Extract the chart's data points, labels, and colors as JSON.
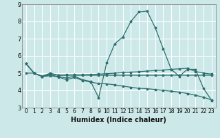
{
  "background_color": "#cce8e8",
  "grid_color": "#ffffff",
  "line_color": "#2d6e6e",
  "xlabel": "Humidex (Indice chaleur)",
  "xlim": [
    -0.5,
    23.5
  ],
  "ylim": [
    3,
    9
  ],
  "yticks": [
    3,
    4,
    5,
    6,
    7,
    8,
    9
  ],
  "xticks": [
    0,
    1,
    2,
    3,
    4,
    5,
    6,
    7,
    8,
    9,
    10,
    11,
    12,
    13,
    14,
    15,
    16,
    17,
    18,
    19,
    20,
    21,
    22,
    23
  ],
  "lines": [
    {
      "x": [
        0,
        1,
        2,
        3,
        4,
        5,
        6,
        7,
        8,
        9,
        10,
        11,
        12,
        13,
        14,
        15,
        16,
        17,
        18,
        19,
        20,
        21,
        22,
        23
      ],
      "y": [
        5.55,
        5.0,
        4.8,
        4.9,
        4.8,
        4.72,
        4.82,
        4.62,
        4.52,
        3.58,
        5.6,
        6.7,
        7.1,
        8.0,
        8.55,
        8.6,
        7.65,
        6.42,
        5.22,
        4.82,
        5.22,
        5.22,
        4.12,
        3.42
      ]
    },
    {
      "x": [
        0,
        1,
        2,
        3,
        4,
        5,
        6,
        7,
        8,
        9,
        10,
        11,
        12,
        13,
        14,
        15,
        16,
        17,
        18,
        19,
        20,
        21,
        22,
        23
      ],
      "y": [
        5.0,
        5.0,
        4.8,
        4.95,
        4.88,
        4.88,
        4.9,
        4.9,
        4.92,
        4.95,
        4.97,
        5.0,
        5.03,
        5.06,
        5.08,
        5.12,
        5.15,
        5.18,
        5.22,
        5.25,
        5.28,
        5.1,
        5.0,
        4.95
      ]
    },
    {
      "x": [
        0,
        1,
        2,
        3,
        4,
        5,
        6,
        7,
        8,
        9,
        10,
        11,
        12,
        13,
        14,
        15,
        16,
        17,
        18,
        19,
        20,
        21,
        22,
        23
      ],
      "y": [
        5.55,
        5.0,
        4.8,
        4.85,
        4.78,
        4.62,
        4.75,
        4.58,
        4.48,
        4.4,
        4.38,
        4.32,
        4.25,
        4.18,
        4.12,
        4.1,
        4.05,
        4.0,
        3.95,
        3.9,
        3.82,
        3.72,
        3.6,
        3.45
      ]
    },
    {
      "x": [
        0,
        1,
        2,
        3,
        4,
        5,
        6,
        7,
        8,
        9,
        10,
        11,
        12,
        13,
        14,
        15,
        16,
        17,
        18,
        19,
        20,
        21,
        22,
        23
      ],
      "y": [
        5.55,
        5.0,
        4.82,
        5.0,
        4.88,
        4.9,
        4.88,
        4.88,
        4.88,
        4.88,
        4.88,
        4.88,
        4.88,
        4.88,
        4.88,
        4.88,
        4.88,
        4.88,
        4.88,
        4.88,
        4.88,
        4.88,
        4.88,
        4.88
      ]
    }
  ]
}
